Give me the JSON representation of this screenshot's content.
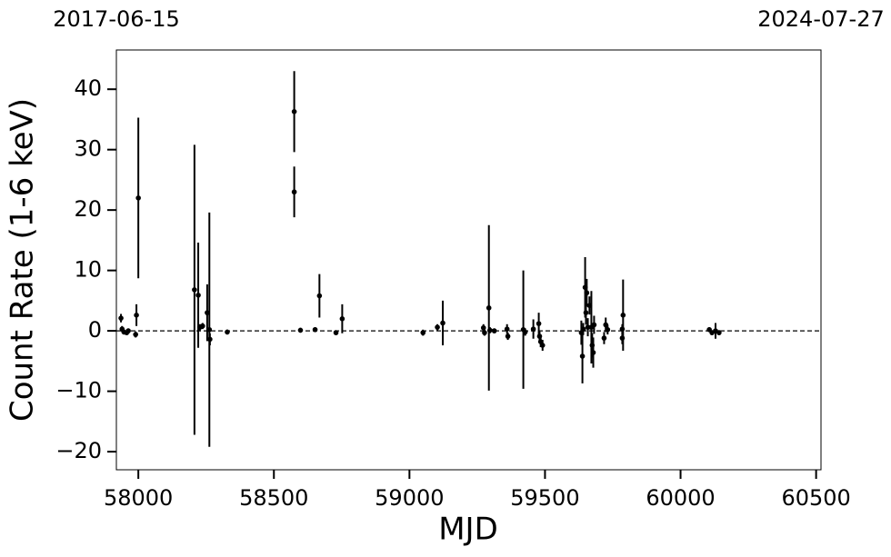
{
  "chart_data": {
    "type": "errorbar-scatter",
    "xlabel": "MJD",
    "ylabel": "Count Rate (1-6 keV)",
    "top_labels": [
      {
        "value": 57919,
        "label": "2017-06-15"
      },
      {
        "value": 60518,
        "label": "2024-07-27"
      }
    ],
    "xlim": [
      57919,
      60518
    ],
    "ylim": [
      -23,
      46.5
    ],
    "xticks": [
      58000,
      58500,
      59000,
      59500,
      60000,
      60500
    ],
    "yticks": [
      {
        "value": -20,
        "label": "−20"
      },
      {
        "value": -10,
        "label": "−10"
      },
      0,
      10,
      20,
      30,
      40
    ],
    "hline": 0,
    "color": "#000000",
    "x": [
      57936,
      57940,
      57947,
      57957,
      57963,
      57990,
      57993,
      58000,
      58207,
      58221,
      58227,
      58237,
      58254,
      58262,
      58264,
      58328,
      58575,
      58575,
      58598,
      58652,
      58668,
      58729,
      58752,
      59050,
      59103,
      59123,
      59273,
      59277,
      59293,
      59297,
      59313,
      59360,
      59363,
      59420,
      59427,
      59457,
      59477,
      59480,
      59484,
      59491,
      59634,
      59638,
      59641,
      59648,
      59651,
      59654,
      59658,
      59664,
      59671,
      59674,
      59678,
      59681,
      59718,
      59724,
      59731,
      59785,
      59785,
      59788,
      60106,
      60116,
      60129,
      60142
    ],
    "values": [
      2.1,
      0.3,
      -0.2,
      -0.3,
      0,
      -0.6,
      2.6,
      22,
      6.8,
      5.9,
      0.6,
      0.8,
      3,
      0.2,
      -1.4,
      -0.2,
      36.3,
      23,
      0.1,
      0.2,
      5.8,
      -0.3,
      2,
      -0.3,
      0.6,
      1.3,
      0.5,
      -0.3,
      3.8,
      0.1,
      0,
      0.3,
      -0.9,
      0.2,
      -0.2,
      0.3,
      1.2,
      -0.9,
      -1.8,
      -2.4,
      -0.3,
      -4.2,
      0.3,
      7.2,
      3,
      6.3,
      0.6,
      4.2,
      0.6,
      -2.4,
      -3.6,
      1,
      -1.2,
      1,
      0.2,
      0.3,
      -1.2,
      2.6,
      0.2,
      -0.3,
      0,
      -0.3
    ],
    "errors": [
      0.7,
      0.5,
      0.4,
      0.4,
      0.4,
      0.5,
      1.8,
      13.3,
      24,
      8.7,
      0.5,
      0.5,
      4.7,
      19.4,
      1,
      0.4,
      6.7,
      4.2,
      0.4,
      0.4,
      3.6,
      0.4,
      2.4,
      0.5,
      0.5,
      3.7,
      0.6,
      0.5,
      13.7,
      0.5,
      0.4,
      0.8,
      0.6,
      9.8,
      0.6,
      1.6,
      1.8,
      0.8,
      0.9,
      0.9,
      2,
      4.5,
      1,
      5,
      2,
      2.3,
      1.5,
      1.5,
      6,
      2,
      2.5,
      1.5,
      1,
      1.2,
      0.8,
      0.8,
      1,
      5.9,
      0.4,
      0.4,
      1.3,
      0.4
    ]
  }
}
